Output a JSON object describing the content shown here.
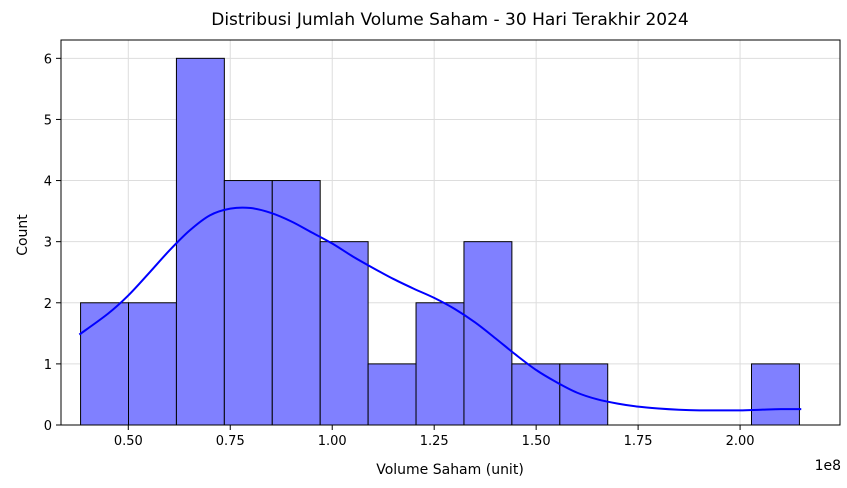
{
  "chart_data": {
    "type": "bar",
    "title": "Distribusi Jumlah Volume Saham - 30 Hari Terakhir 2024",
    "xlabel": "Volume Saham (unit)",
    "ylabel": "Count",
    "x_offset_label": "1e8",
    "xlim": [
      0.335,
      2.245
    ],
    "ylim": [
      0,
      6.3
    ],
    "grid": true,
    "bar_color": "#8080ff",
    "bar_edge_color": "#000000",
    "kde_color": "#0000ff",
    "x_ticks": [
      0.5,
      0.75,
      1.0,
      1.25,
      1.5,
      1.75,
      2.0
    ],
    "x_tick_labels": [
      "0.50",
      "0.75",
      "1.00",
      "1.25",
      "1.50",
      "1.75",
      "2.00"
    ],
    "y_ticks": [
      0,
      1,
      2,
      3,
      4,
      5,
      6
    ],
    "y_tick_labels": [
      "0",
      "1",
      "2",
      "3",
      "4",
      "5",
      "6"
    ],
    "bins": [
      {
        "start": 0.383,
        "end": 0.5005,
        "count": 2
      },
      {
        "start": 0.5005,
        "end": 0.618,
        "count": 2
      },
      {
        "start": 0.618,
        "end": 0.7355,
        "count": 6
      },
      {
        "start": 0.7355,
        "end": 0.853,
        "count": 4
      },
      {
        "start": 0.853,
        "end": 0.9705,
        "count": 4
      },
      {
        "start": 0.9705,
        "end": 1.088,
        "count": 3
      },
      {
        "start": 1.088,
        "end": 1.2055,
        "count": 1
      },
      {
        "start": 1.2055,
        "end": 1.323,
        "count": 2
      },
      {
        "start": 1.323,
        "end": 1.4405,
        "count": 3
      },
      {
        "start": 1.4405,
        "end": 1.558,
        "count": 1
      },
      {
        "start": 1.558,
        "end": 1.6755,
        "count": 1
      },
      {
        "start": 1.6755,
        "end": 1.793,
        "count": 0
      },
      {
        "start": 1.793,
        "end": 1.9105,
        "count": 0
      },
      {
        "start": 1.9105,
        "end": 2.028,
        "count": 0
      },
      {
        "start": 2.028,
        "end": 2.1455,
        "count": 1
      }
    ],
    "kde": {
      "x": [
        0.38,
        0.45,
        0.5,
        0.55,
        0.6,
        0.65,
        0.7,
        0.75,
        0.8,
        0.85,
        0.9,
        0.95,
        1.0,
        1.05,
        1.1,
        1.15,
        1.2,
        1.25,
        1.3,
        1.35,
        1.4,
        1.45,
        1.5,
        1.55,
        1.6,
        1.65,
        1.7,
        1.75,
        1.8,
        1.85,
        1.9,
        1.95,
        2.0,
        2.05,
        2.1,
        2.15
      ],
      "y": [
        1.48,
        1.82,
        2.12,
        2.48,
        2.85,
        3.18,
        3.43,
        3.54,
        3.55,
        3.47,
        3.33,
        3.15,
        2.97,
        2.76,
        2.57,
        2.39,
        2.23,
        2.08,
        1.9,
        1.68,
        1.42,
        1.15,
        0.9,
        0.7,
        0.53,
        0.42,
        0.35,
        0.3,
        0.27,
        0.25,
        0.24,
        0.24,
        0.24,
        0.25,
        0.26,
        0.26
      ]
    }
  }
}
